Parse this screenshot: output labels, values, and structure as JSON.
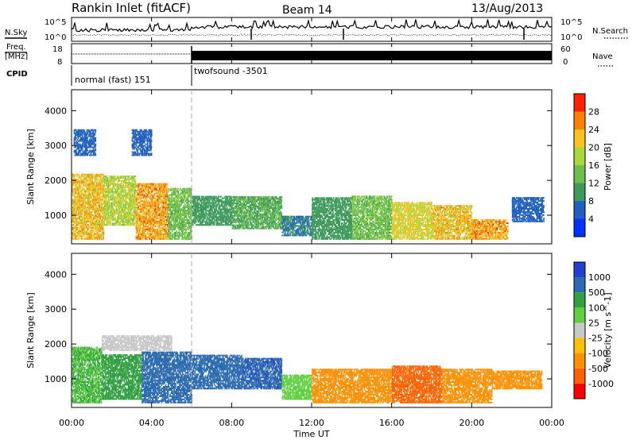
{
  "header": {
    "station": "Rankin Inlet (fitACF)",
    "beam": "Beam 14",
    "date": "13/Aug/2013"
  },
  "noise_panel": {
    "left_label": "N.Sky",
    "right_label": "N.Search",
    "left_ticks": [
      "10^5",
      "10^0"
    ],
    "right_ticks": [
      "10^5",
      "10^0"
    ]
  },
  "freq_panel": {
    "left_label_1": "Freq.",
    "left_label_2": "[MHz]",
    "left_ticks": [
      "18",
      "8"
    ],
    "right_label": "Nave",
    "right_ticks": [
      "60",
      "0"
    ]
  },
  "cpid": {
    "label": "CPID",
    "modes": [
      {
        "name": "normal (fast) 151",
        "start_hour": 0,
        "end_hour": 6
      },
      {
        "name": "twofsound -3501",
        "start_hour": 6,
        "end_hour": 24
      }
    ]
  },
  "colors": {
    "power_scale": [
      "#0033ff",
      "#2060c0",
      "#3c9a5a",
      "#6cc04a",
      "#a8d83c",
      "#ffc020",
      "#ff8000",
      "#ff2000"
    ],
    "velocity_scale": [
      "#ff0000",
      "#ff6000",
      "#ff9000",
      "#ffc000",
      "#c8c8c8",
      "#60d040",
      "#30a040",
      "#2a6ab0",
      "#2040d0"
    ],
    "ground_scatter": "#c8c8c8"
  },
  "chart_data": [
    {
      "type": "heatmap",
      "name": "power",
      "ylabel": "Slant Range [km]",
      "ylim": [
        180,
        4600
      ],
      "yticks": [
        1000,
        2000,
        3000,
        4000
      ],
      "xlim": [
        0,
        24
      ],
      "colorbar": {
        "label": "Power [dB]",
        "range": [
          0,
          32
        ],
        "ticks": [
          4,
          8,
          12,
          16,
          20,
          24,
          28
        ]
      },
      "segments": [
        {
          "t0": 0.0,
          "t1": 1.6,
          "r0": 300,
          "r1": 2200,
          "value": 22
        },
        {
          "t0": 1.6,
          "t1": 3.2,
          "r0": 700,
          "r1": 2150,
          "value": 18
        },
        {
          "t0": 3.2,
          "t1": 4.8,
          "r0": 300,
          "r1": 1900,
          "value": 24
        },
        {
          "t0": 4.8,
          "t1": 6.0,
          "r0": 300,
          "r1": 1800,
          "value": 14
        },
        {
          "t0": 0.1,
          "t1": 1.2,
          "r0": 2700,
          "r1": 3450,
          "value": 6
        },
        {
          "t0": 3.0,
          "t1": 4.0,
          "r0": 2700,
          "r1": 3450,
          "value": 6
        },
        {
          "t0": 6.0,
          "t1": 8.0,
          "r0": 700,
          "r1": 1550,
          "value": 10
        },
        {
          "t0": 8.0,
          "t1": 10.5,
          "r0": 600,
          "r1": 1550,
          "value": 12
        },
        {
          "t0": 10.5,
          "t1": 12.0,
          "r0": 400,
          "r1": 1000,
          "value": 8
        },
        {
          "t0": 12.0,
          "t1": 14.0,
          "r0": 300,
          "r1": 1500,
          "value": 10
        },
        {
          "t0": 14.0,
          "t1": 16.0,
          "r0": 300,
          "r1": 1550,
          "value": 14
        },
        {
          "t0": 16.0,
          "t1": 18.0,
          "r0": 300,
          "r1": 1400,
          "value": 20
        },
        {
          "t0": 18.0,
          "t1": 20.0,
          "r0": 300,
          "r1": 1300,
          "value": 22
        },
        {
          "t0": 20.0,
          "t1": 21.8,
          "r0": 300,
          "r1": 900,
          "value": 24
        },
        {
          "t0": 22.0,
          "t1": 23.6,
          "r0": 800,
          "r1": 1500,
          "value": 6
        }
      ]
    },
    {
      "type": "heatmap",
      "name": "velocity",
      "ylabel": "Slant Range [km]",
      "ylim": [
        180,
        4600
      ],
      "yticks": [
        1000,
        2000,
        3000,
        4000
      ],
      "xlim": [
        0,
        24
      ],
      "xlabel": "Time UT",
      "xticks": [
        "00:00",
        "04:00",
        "08:00",
        "12:00",
        "16:00",
        "20:00",
        "00:00"
      ],
      "colorbar": {
        "label": "Velocity [m s^-1]",
        "ticks": [
          1000,
          500,
          100,
          25,
          -25,
          -100,
          -500,
          -1000
        ]
      },
      "segments": [
        {
          "t0": 0.0,
          "t1": 1.5,
          "r0": 300,
          "r1": 1900,
          "value": 100
        },
        {
          "t0": 1.5,
          "t1": 5.0,
          "r0": 1800,
          "r1": 2250,
          "value": 0
        },
        {
          "t0": 1.5,
          "t1": 3.5,
          "r0": 400,
          "r1": 1700,
          "value": 300
        },
        {
          "t0": 3.5,
          "t1": 6.0,
          "r0": 300,
          "r1": 1800,
          "value": 700
        },
        {
          "t0": 6.0,
          "t1": 8.5,
          "r0": 700,
          "r1": 1700,
          "value": 800
        },
        {
          "t0": 8.5,
          "t1": 10.5,
          "r0": 700,
          "r1": 1600,
          "value": 900
        },
        {
          "t0": 10.5,
          "t1": 12.0,
          "r0": 400,
          "r1": 1100,
          "value": 50
        },
        {
          "t0": 12.0,
          "t1": 16.0,
          "r0": 300,
          "r1": 1300,
          "value": -400
        },
        {
          "t0": 16.0,
          "t1": 18.5,
          "r0": 300,
          "r1": 1400,
          "value": -600
        },
        {
          "t0": 18.5,
          "t1": 21.0,
          "r0": 300,
          "r1": 1300,
          "value": -300
        },
        {
          "t0": 21.0,
          "t1": 23.5,
          "r0": 700,
          "r1": 1250,
          "value": -300
        }
      ]
    }
  ]
}
